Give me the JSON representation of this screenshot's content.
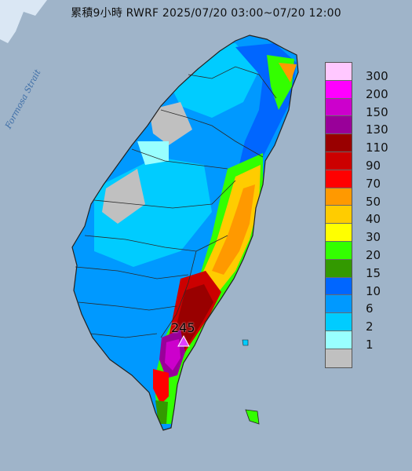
{
  "title": "累積9小時 RWRF 2025/07/20 03:00~07/20 12:00",
  "strait_label": "Formosa Strait",
  "max_label": "245",
  "colors": {
    "sea": "#9fb4c9",
    "max_marker": "#e040ff"
  },
  "legend": [
    {
      "label": "300",
      "color": "#ffc8ff"
    },
    {
      "label": "200",
      "color": "#ff00ff"
    },
    {
      "label": "150",
      "color": "#cc00cc"
    },
    {
      "label": "130",
      "color": "#990099"
    },
    {
      "label": "110",
      "color": "#990000"
    },
    {
      "label": "90",
      "color": "#cc0000"
    },
    {
      "label": "70",
      "color": "#ff0000"
    },
    {
      "label": "50",
      "color": "#ff9900"
    },
    {
      "label": "40",
      "color": "#ffcc00"
    },
    {
      "label": "30",
      "color": "#ffff00"
    },
    {
      "label": "20",
      "color": "#33ff00"
    },
    {
      "label": "15",
      "color": "#339900"
    },
    {
      "label": "10",
      "color": "#0066ff"
    },
    {
      "label": "6",
      "color": "#0099ff"
    },
    {
      "label": "2",
      "color": "#00ccff"
    },
    {
      "label": "1",
      "color": "#99ffff"
    },
    {
      "label": "",
      "color": "#c0c0c0"
    }
  ]
}
